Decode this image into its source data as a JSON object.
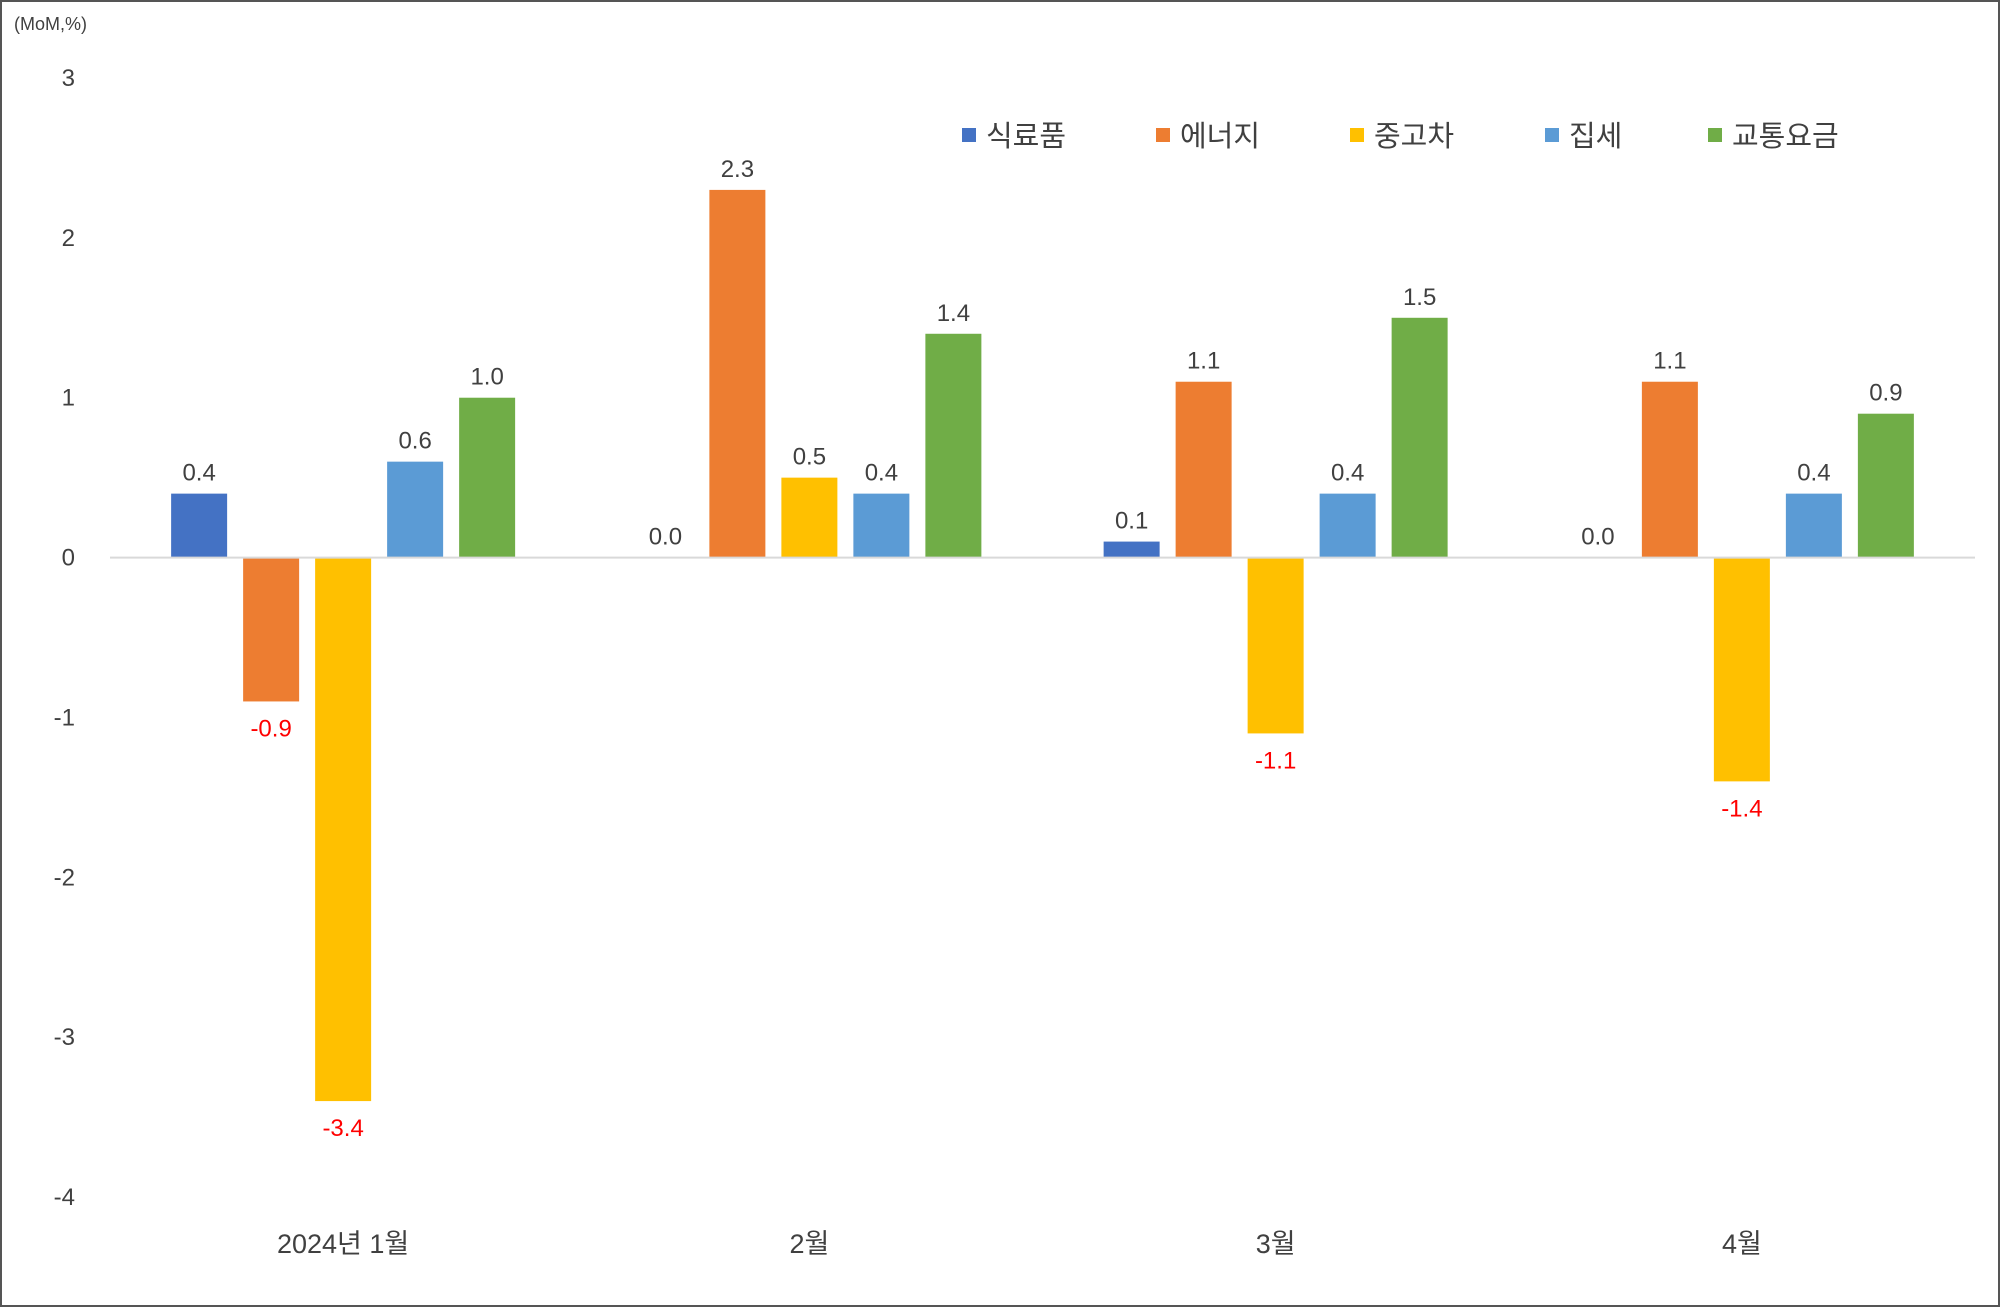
{
  "chart_data": {
    "type": "bar",
    "unit_label": "(MoM,%)",
    "categories": [
      "2024년 1월",
      "2월",
      "3월",
      "4월"
    ],
    "series": [
      {
        "name": "식료품",
        "color": "#4472C4",
        "values": [
          0.4,
          0.0,
          0.1,
          0.0
        ]
      },
      {
        "name": "에너지",
        "color": "#ED7D31",
        "values": [
          -0.9,
          2.3,
          1.1,
          1.1
        ]
      },
      {
        "name": "중고차",
        "color": "#FFC000",
        "values": [
          -3.4,
          0.5,
          -1.1,
          -1.4
        ]
      },
      {
        "name": "집세",
        "color": "#5B9BD5",
        "values": [
          0.6,
          0.4,
          0.4,
          0.4
        ]
      },
      {
        "name": "교통요금",
        "color": "#70AD47",
        "values": [
          1.0,
          1.4,
          1.5,
          0.9
        ]
      }
    ],
    "data_labels": [
      [
        "0.4",
        "0.0",
        "0.1",
        "0.0"
      ],
      [
        "-0.9",
        "2.3",
        "1.1",
        "1.1"
      ],
      [
        "-3.4",
        "0.5",
        "-1.1",
        "-1.4"
      ],
      [
        "0.6",
        "0.4",
        "0.4",
        "0.4"
      ],
      [
        "1.0",
        "1.4",
        "1.5",
        "0.9"
      ]
    ],
    "ylim": [
      -4,
      3
    ],
    "yticks": [
      "3",
      "2",
      "1",
      "0",
      "-1",
      "-2",
      "-3",
      "-4"
    ],
    "yticks_values": [
      3,
      2,
      1,
      0,
      -1,
      -2,
      -3,
      -4
    ],
    "negative_label_color": "#FF0000",
    "positive_label_color": "#404040",
    "legend_position": "top-right",
    "grid": false
  }
}
